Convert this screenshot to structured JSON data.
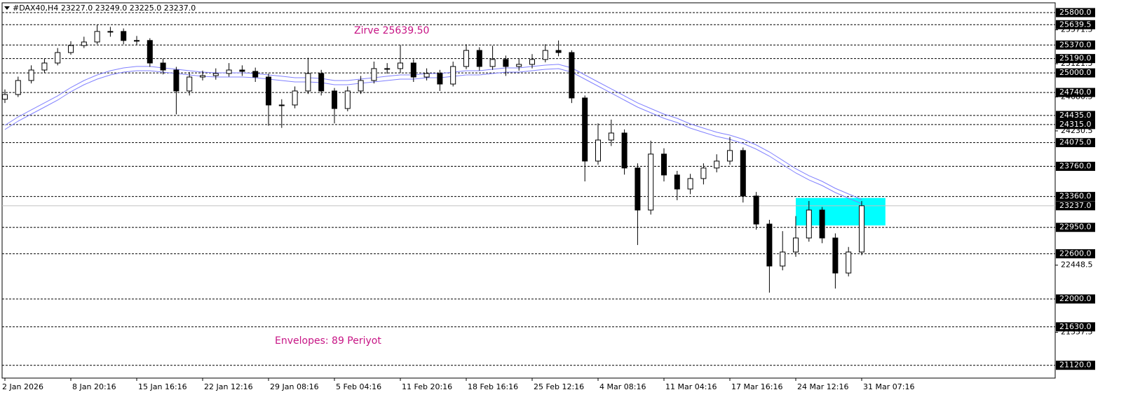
{
  "chart_data": {
    "type": "candlestick",
    "title": "#DAX40,H4  23227.0 23249.0 23225.0 23237.0",
    "annotations": [
      "Zirve 25639.50",
      "Envelopes: 89 Periyot"
    ],
    "annotation_color": "#c71585",
    "categories": [
      "2 Jan 2026",
      null,
      null,
      null,
      null,
      "8 Jan 20:16",
      null,
      null,
      null,
      null,
      "15 Jan 16:16",
      null,
      null,
      null,
      null,
      "22 Jan 12:16",
      null,
      null,
      null,
      null,
      "29 Jan 08:16",
      null,
      null,
      null,
      null,
      "5 Feb 04:16",
      null,
      null,
      null,
      null,
      "11 Feb 20:16",
      null,
      null,
      null,
      null,
      "18 Feb 16:16",
      null,
      null,
      null,
      null,
      "25 Feb 12:16",
      null,
      null,
      null,
      null,
      "4 Mar 08:16",
      null,
      null,
      null,
      null,
      "11 Mar 04:16",
      null,
      null,
      null,
      null,
      "17 Mar 16:16",
      null,
      null,
      null,
      null,
      "24 Mar 12:16",
      null,
      null,
      null,
      null,
      "31 Mar 07:16"
    ],
    "open": [
      24650,
      24713,
      24899,
      25038,
      25131,
      25270,
      25363,
      25410,
      25550,
      25550,
      25430,
      25430,
      25131,
      25038,
      24760,
      24945,
      24964,
      24992,
      25038,
      25020,
      24945,
      24574,
      24574,
      24760,
      24992,
      24760,
      24527,
      24760,
      24899,
      25057,
      25057,
      25131,
      24945,
      24992,
      24852,
      25085,
      25298,
      25085,
      25178,
      25085,
      25113,
      25178,
      25298,
      25270,
      24667,
      23830,
      24109,
      24202,
      23738,
      23180,
      23923,
      23645,
      23459,
      23598,
      23738,
      23830,
      23970,
      23366,
      22994,
      22437,
      22623,
      22809,
      23180,
      22809,
      22344,
      22623
    ],
    "high": [
      24780,
      24950,
      25100,
      25190,
      25330,
      25420,
      25480,
      25639.5,
      25610,
      25590,
      25490,
      25460,
      25190,
      25080,
      25010,
      25030,
      25060,
      25130,
      25100,
      25070,
      24990,
      24650,
      24820,
      25200,
      25040,
      24800,
      24820,
      24960,
      25150,
      25130,
      25370,
      25180,
      25060,
      25040,
      25150,
      25380,
      25340,
      25360,
      25230,
      25190,
      25250,
      25380,
      25430,
      25300,
      24700,
      24330,
      24380,
      24250,
      23800,
      24100,
      24000,
      23700,
      23660,
      23800,
      23920,
      24150,
      24010,
      23420,
      23050,
      22900,
      23100,
      23300,
      23220,
      22870,
      22690,
      23300
    ],
    "low": [
      24600,
      24680,
      24860,
      25000,
      25100,
      25240,
      25330,
      25380,
      25480,
      25380,
      25370,
      25080,
      24980,
      24450,
      24700,
      24900,
      24910,
      24950,
      24960,
      24880,
      24300,
      24270,
      24530,
      24720,
      24700,
      24330,
      24490,
      24720,
      24860,
      24990,
      25000,
      24880,
      24900,
      24760,
      24820,
      25050,
      25030,
      25040,
      24960,
      25030,
      25060,
      25140,
      25220,
      24600,
      23560,
      23780,
      24030,
      23650,
      22716,
      23120,
      23560,
      23310,
      23390,
      23520,
      23680,
      23780,
      23280,
      22920,
      22084,
      22380,
      22560,
      22760,
      22740,
      22138,
      22300,
      22580
    ],
    "close": [
      24713,
      24899,
      25038,
      25131,
      25270,
      25363,
      25410,
      25550,
      25550,
      25430,
      25430,
      25131,
      25038,
      24760,
      24945,
      24964,
      24992,
      25038,
      25020,
      24945,
      24574,
      24574,
      24760,
      24992,
      24760,
      24527,
      24760,
      24899,
      25057,
      25057,
      25131,
      24945,
      24992,
      24852,
      25085,
      25298,
      25085,
      25178,
      25085,
      25113,
      25178,
      25298,
      25270,
      24667,
      23830,
      24109,
      24202,
      23738,
      23180,
      23923,
      23645,
      23459,
      23598,
      23738,
      23830,
      23970,
      23366,
      22994,
      22437,
      22623,
      22809,
      23180,
      22809,
      22344,
      22623,
      23237
    ],
    "bull_color": "#ffffff",
    "bear_color": "#000000",
    "series": [
      {
        "color": "#8080ff",
        "values": [
          24304,
          24416,
          24509,
          24602,
          24695,
          24806,
          24899,
          24973,
          25029,
          25066,
          25085,
          25085,
          25066,
          25048,
          25029,
          25010,
          25001,
          25001,
          25001,
          24992,
          24973,
          24955,
          24936,
          24936,
          24927,
          24899,
          24899,
          24918,
          24936,
          24955,
          24973,
          24973,
          24992,
          24992,
          25010,
          25029,
          25029,
          25048,
          25066,
          25066,
          25085,
          25103,
          25113,
          25066,
          24973,
          24880,
          24788,
          24695,
          24602,
          24527,
          24453,
          24397,
          24323,
          24267,
          24212,
          24174,
          24119,
          24044,
          23951,
          23840,
          23728,
          23636,
          23561,
          23468,
          23394,
          23320
        ]
      },
      {
        "color": "#8080ff",
        "values": [
          24248,
          24360,
          24453,
          24546,
          24639,
          24750,
          24843,
          24917,
          24973,
          25010,
          25029,
          25029,
          25010,
          24992,
          24973,
          24954,
          24945,
          24945,
          24945,
          24936,
          24917,
          24899,
          24880,
          24880,
          24871,
          24843,
          24843,
          24862,
          24880,
          24899,
          24917,
          24917,
          24936,
          24936,
          24954,
          24973,
          24973,
          24992,
          25010,
          25010,
          25029,
          25047,
          25057,
          25010,
          24917,
          24824,
          24732,
          24639,
          24546,
          24471,
          24397,
          24341,
          24267,
          24211,
          24156,
          24118,
          24063,
          23988,
          23895,
          23784,
          23672,
          23580,
          23505,
          23412,
          23338,
          23264
        ]
      }
    ],
    "zone": {
      "x": [
        60,
        66.8
      ],
      "y": [
        22976,
        23340
      ],
      "color": "#00ffff"
    },
    "ylim": [
      20950,
      25930
    ],
    "yticks": [
      25571.5,
      25121.5,
      24680.5,
      24230.5,
      22448.5,
      21557.5
    ],
    "levels": [
      {
        "value": 25800,
        "label": "25800.0"
      },
      25639.5,
      {
        "value": 25370,
        "label": "25370.0"
      },
      {
        "value": 25190,
        "label": "25190.0"
      },
      {
        "value": 25000,
        "label": "25000.0"
      },
      {
        "value": 24740,
        "label": "24740.0"
      },
      {
        "value": 24435,
        "label": "24435.0"
      },
      {
        "value": 24315,
        "label": "24315.0"
      },
      {
        "value": 24075,
        "label": "24075.0"
      },
      {
        "value": 23760,
        "label": "23760.0"
      },
      {
        "value": 23360,
        "label": "23360.0"
      },
      {
        "value": 22950,
        "label": "22950.0"
      },
      {
        "value": 22600,
        "label": "22600.0"
      },
      {
        "value": 22000,
        "label": "22000.0"
      },
      {
        "value": 21630,
        "label": "21630.0"
      },
      {
        "value": 21120,
        "label": "21120.0"
      }
    ],
    "current_price": {
      "value": 23237,
      "label": "23237.0"
    }
  }
}
